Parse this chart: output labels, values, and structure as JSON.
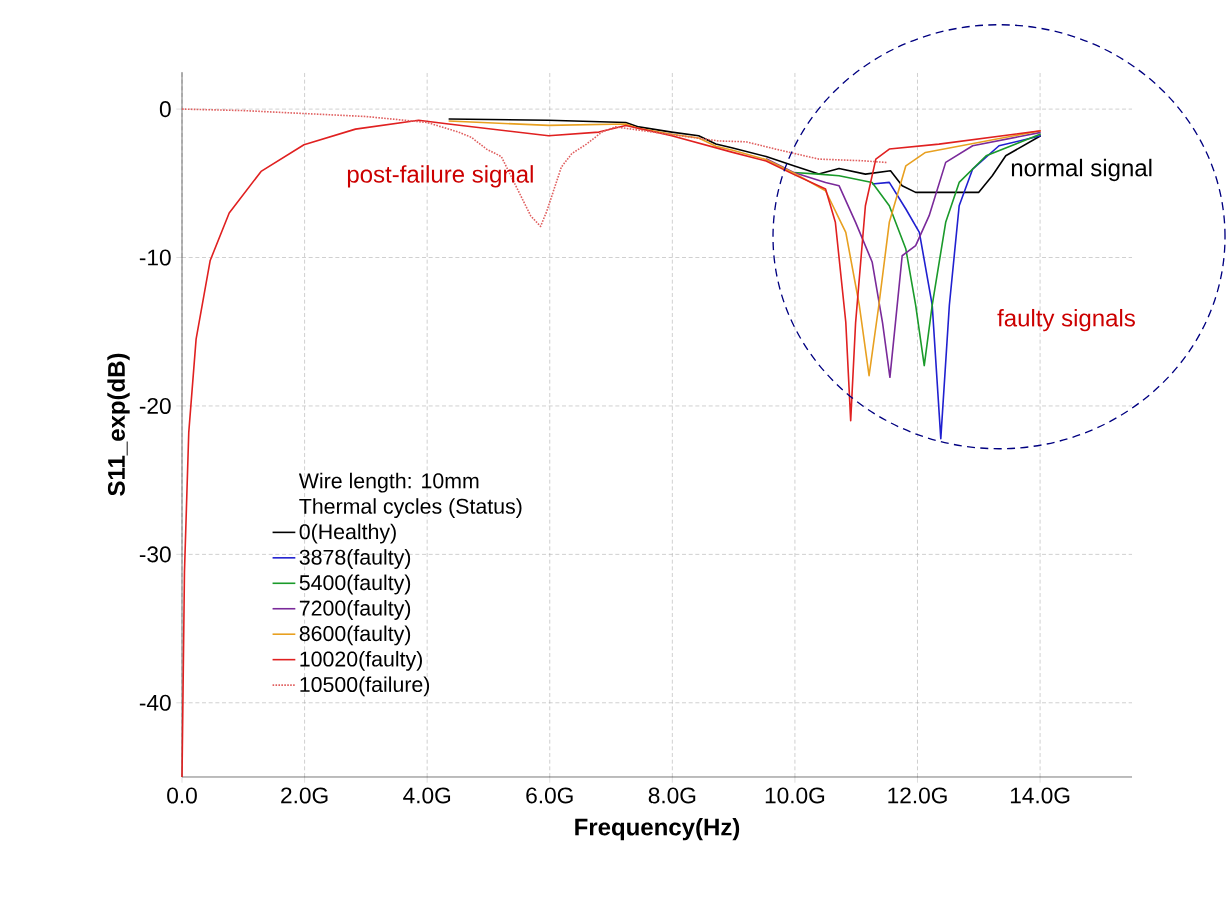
{
  "chart_data": {
    "type": "line",
    "xlabel": "Frequency(Hz)",
    "ylabel": "S11_exp(dB)",
    "legend_title": "Thermal cycles (Status)",
    "xlim": [
      0,
      15.5
    ],
    "ylim": [
      -45,
      2.5
    ],
    "xticks": [
      {
        "value": 0,
        "label": "0.0"
      },
      {
        "value": 2,
        "label": "2.0G"
      },
      {
        "value": 4,
        "label": "4.0G"
      },
      {
        "value": 6,
        "label": "6.0G"
      },
      {
        "value": 8,
        "label": "8.0G"
      },
      {
        "value": 10,
        "label": "10.0G"
      },
      {
        "value": 12,
        "label": "12.0G"
      },
      {
        "value": 14,
        "label": "14.0G"
      }
    ],
    "yticks": [
      0,
      -10,
      -20,
      -30,
      -40
    ],
    "grid": true,
    "legend": "left",
    "marker": "none",
    "line_style": "solid",
    "annotations": [
      "post-failure signal",
      "normal signal",
      "faulty signals",
      "Wire length: 10mm"
    ],
    "series": [
      {
        "name": "0(Healthy)",
        "color": "#000000",
        "x": [
          4.35,
          5.98,
          7.24,
          7.45,
          7.99,
          8.43,
          8.71,
          8.97,
          9.53,
          9.98,
          10.39,
          10.72,
          11.15,
          11.56,
          11.75,
          11.97,
          12.35,
          13.0,
          13.22,
          13.44,
          14.01
        ],
        "values": [
          -0.67,
          -0.75,
          -0.9,
          -1.2,
          -1.55,
          -1.8,
          -2.35,
          -2.6,
          -3.2,
          -3.82,
          -4.38,
          -4.0,
          -4.38,
          -4.15,
          -5.16,
          -5.61,
          -5.61,
          -5.61,
          -4.49,
          -3.14,
          -1.8
        ]
      },
      {
        "name": "3878(faulty)",
        "color": "#2020d0",
        "x": [
          11.26,
          11.54,
          11.81,
          12.03,
          12.24,
          12.38,
          12.52,
          12.68,
          12.9,
          13.33,
          14.01
        ],
        "values": [
          -5.05,
          -4.94,
          -6.73,
          -8.3,
          -13.2,
          -22.2,
          -13.2,
          -6.51,
          -4.04,
          -2.47,
          -1.8
        ]
      },
      {
        "name": "5400(faulty)",
        "color": "#1a9a2a",
        "x": [
          9.98,
          10.39,
          10.72,
          11.26,
          11.54,
          11.81,
          11.97,
          12.11,
          12.24,
          12.46,
          12.68,
          13.12,
          14.01
        ],
        "values": [
          -4.27,
          -4.38,
          -4.49,
          -4.94,
          -6.51,
          -9.43,
          -13.2,
          -17.28,
          -13.2,
          -7.63,
          -4.94,
          -3.14,
          -1.68
        ]
      },
      {
        "name": "7200(faulty)",
        "color": "#7a2a9a",
        "x": [
          9.53,
          9.98,
          10.5,
          10.72,
          10.99,
          11.26,
          11.43,
          11.55,
          11.64,
          11.75,
          11.97,
          12.19,
          12.46,
          12.9,
          14.01
        ],
        "values": [
          -3.35,
          -4.27,
          -4.94,
          -5.16,
          -7.63,
          -10.3,
          -14.4,
          -18.07,
          -14.4,
          -9.88,
          -9.2,
          -7.18,
          -3.59,
          -2.47,
          -1.57
        ]
      },
      {
        "name": "8600(faulty)",
        "color": "#e8a020",
        "x": [
          4.35,
          5.98,
          7.24,
          7.45,
          7.99,
          8.43,
          8.71,
          8.97,
          9.53,
          9.98,
          10.5,
          10.83,
          11.05,
          11.21,
          11.37,
          11.54,
          11.81,
          12.13,
          14.01
        ],
        "values": [
          -0.8,
          -1.1,
          -1.0,
          -1.3,
          -1.7,
          -1.95,
          -2.5,
          -2.75,
          -3.4,
          -4.3,
          -5.5,
          -8.3,
          -13.2,
          -17.96,
          -13.2,
          -7.63,
          -3.82,
          -2.92,
          -1.46
        ]
      },
      {
        "name": "10020(faulty)",
        "color": "#e02020",
        "x": [
          0,
          0.04,
          0.11,
          0.23,
          0.46,
          0.77,
          1.29,
          1.99,
          2.83,
          3.86,
          4.35,
          5.98,
          6.8,
          7.24,
          7.99,
          8.97,
          9.53,
          9.98,
          10.5,
          10.66,
          10.83,
          10.91,
          10.99,
          11.15,
          11.32,
          11.54,
          12.35,
          14.01
        ],
        "values": [
          -45,
          -31.2,
          -21.8,
          -15.5,
          -10.2,
          -7.0,
          -4.2,
          -2.4,
          -1.35,
          -0.75,
          -1.0,
          -1.8,
          -1.55,
          -1.1,
          -1.8,
          -2.9,
          -3.5,
          -4.4,
          -5.39,
          -7.63,
          -14.36,
          -20.99,
          -14.4,
          -6.51,
          -3.37,
          -2.69,
          -2.36,
          -1.46
        ]
      },
      {
        "name": "10500(failure)",
        "color": "#e06060",
        "line_style": "dotted",
        "x": [
          0,
          1.0,
          2.0,
          3.0,
          4.0,
          4.51,
          4.72,
          4.97,
          5.21,
          5.69,
          5.85,
          5.95,
          6.19,
          6.36,
          6.6,
          6.85,
          7.07,
          8.76,
          9.2,
          9.69,
          10.39,
          11.1,
          11.5
        ],
        "values": [
          0,
          -0.1,
          -0.3,
          -0.5,
          -0.9,
          -1.55,
          -1.9,
          -2.7,
          -3.2,
          -7.2,
          -7.9,
          -6.9,
          -3.9,
          -3.0,
          -2.36,
          -1.55,
          -1.2,
          -2.15,
          -2.2,
          -2.7,
          -3.37,
          -3.48,
          -3.6
        ]
      }
    ]
  }
}
